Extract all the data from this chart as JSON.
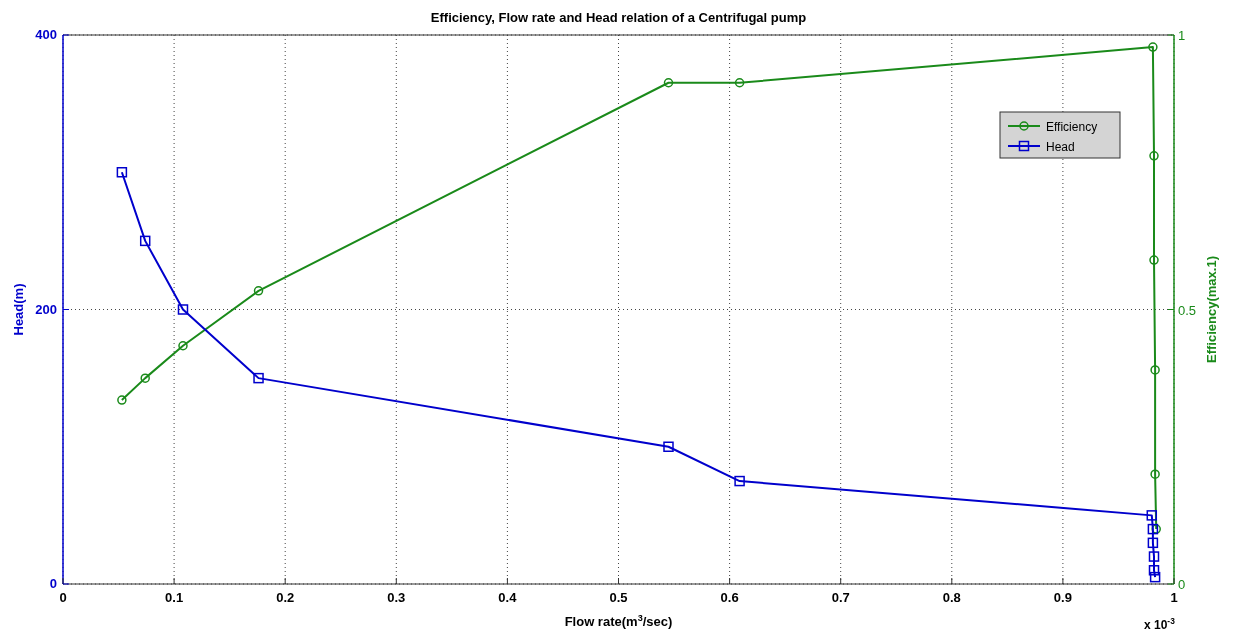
{
  "chart_data": {
    "type": "line",
    "title": "Efficiency, Flow rate and Head relation of a Centrifugal pump",
    "xlabel": "Flow rate(m$^{3}$/sec)",
    "ylabel": "Head(m)",
    "y2label": "Efficiency(max.1)",
    "annotations": [
      "x 10$^{-3}$"
    ],
    "xlim": [
      0,
      1
    ],
    "xticks": [
      0,
      0.1,
      0.2,
      0.3,
      0.4,
      0.5,
      0.6,
      0.7,
      0.8,
      0.9,
      1
    ],
    "ylim": [
      0,
      400
    ],
    "yticks": [
      0,
      200,
      400
    ],
    "y2lim": [
      0,
      1
    ],
    "y2ticks": [
      0,
      0.5,
      1
    ],
    "grid": true,
    "legend": "top right",
    "line_style": "solid",
    "series": [
      {
        "name": "Efficiency",
        "color": "#1a8a1a",
        "axis": "y2",
        "marker": "circle",
        "x": [
          0.053,
          0.074,
          0.108,
          0.176,
          0.545,
          0.609,
          0.981,
          0.982,
          0.982,
          0.983,
          0.983,
          0.984
        ],
        "values": [
          0.335,
          0.375,
          0.434,
          0.534,
          0.913,
          0.913,
          0.978,
          0.78,
          0.59,
          0.39,
          0.2,
          0.1
        ]
      },
      {
        "name": "Head",
        "color": "#0000cc",
        "axis": "y",
        "marker": "square",
        "x": [
          0.053,
          0.074,
          0.108,
          0.176,
          0.545,
          0.609,
          0.98,
          0.981,
          0.981,
          0.982,
          0.982,
          0.983
        ],
        "values": [
          300,
          250,
          200,
          150,
          100,
          75,
          50,
          40,
          30,
          20,
          10,
          5
        ]
      }
    ]
  }
}
